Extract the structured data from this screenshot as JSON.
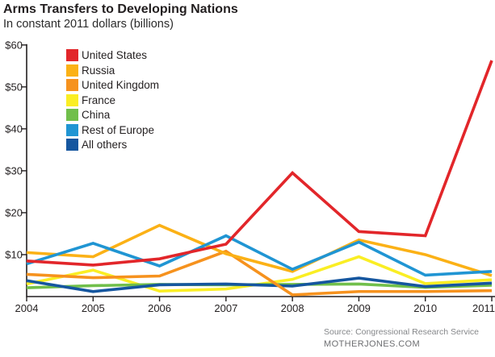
{
  "source": {
    "line1": "Source: Congressional Research Service",
    "line2": "MOTHERJONES.COM"
  },
  "chart_data": {
    "type": "line",
    "title": "Arms Transfers to Developing Nations",
    "subtitle": "In constant 2011 dollars (billions)",
    "x": [
      2004,
      2005,
      2006,
      2007,
      2008,
      2009,
      2010,
      2011
    ],
    "x_labels": [
      "2004",
      "2005",
      "2006",
      "2007",
      "2008",
      "2009",
      "2010",
      "2011"
    ],
    "series": [
      {
        "name": "United States",
        "color": "#e2262a",
        "values": [
          8.5,
          7.5,
          9.0,
          12.5,
          29.5,
          15.5,
          14.5,
          56.3
        ]
      },
      {
        "name": "Russia",
        "color": "#fbb116",
        "values": [
          10.5,
          9.5,
          17.0,
          10.2,
          6.0,
          13.5,
          10.0,
          5.0
        ]
      },
      {
        "name": "United Kingdom",
        "color": "#f6921e",
        "values": [
          5.3,
          4.5,
          4.9,
          10.8,
          0.4,
          1.2,
          1.2,
          1.4
        ]
      },
      {
        "name": "France",
        "color": "#faee24",
        "values": [
          3.0,
          6.3,
          1.3,
          1.8,
          4.1,
          9.5,
          3.1,
          4.0
        ]
      },
      {
        "name": "China",
        "color": "#71bf4b",
        "values": [
          2.1,
          2.6,
          2.9,
          2.8,
          2.9,
          3.0,
          2.2,
          2.7
        ]
      },
      {
        "name": "Rest of Europe",
        "color": "#2095d3",
        "values": [
          7.8,
          12.7,
          7.3,
          14.5,
          6.5,
          13.0,
          5.1,
          6.0
        ]
      },
      {
        "name": "All others",
        "color": "#15569f",
        "values": [
          3.8,
          1.2,
          2.8,
          3.0,
          2.5,
          4.4,
          2.4,
          3.2
        ]
      }
    ],
    "draw_order": [
      "France",
      "China",
      "All others",
      "United Kingdom",
      "Russia",
      "Rest of Europe",
      "United States"
    ],
    "yticks": [
      10,
      20,
      30,
      40,
      50,
      60
    ],
    "ytick_labels": [
      "$10",
      "$20",
      "$30",
      "$40",
      "$50",
      "$60"
    ],
    "ylim": [
      0,
      60
    ],
    "xlabel": "",
    "ylabel": "",
    "grid": false,
    "legend_position": "top-left",
    "axis_color": "#231f20"
  }
}
